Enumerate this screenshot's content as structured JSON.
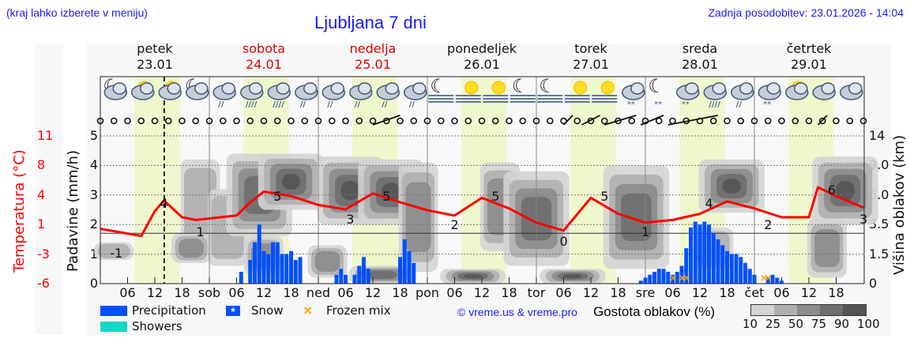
{
  "header": {
    "location_hint": "(kraj lahko izberete v meniju)",
    "title": "Ljubljana 7 dni",
    "last_update": "Zadnja posodobitev: 23.01.2026 - 14:04"
  },
  "days": [
    {
      "name": "petek",
      "date": "23.01",
      "weekend": false
    },
    {
      "name": "sobota",
      "date": "24.01",
      "weekend": true
    },
    {
      "name": "nedelja",
      "date": "25.01",
      "weekend": true
    },
    {
      "name": "ponedeljek",
      "date": "26.01",
      "weekend": false
    },
    {
      "name": "torek",
      "date": "27.01",
      "weekend": false
    },
    {
      "name": "sreda",
      "date": "28.01",
      "weekend": false
    },
    {
      "name": "četrtek",
      "date": "29.01",
      "weekend": false
    }
  ],
  "x_ticks": [
    "06",
    "12",
    "18",
    "sob",
    "06",
    "12",
    "18",
    "ned",
    "06",
    "12",
    "18",
    "pon",
    "06",
    "12",
    "18",
    "tor",
    "06",
    "12",
    "18",
    "sre",
    "06",
    "12",
    "18",
    "čet",
    "06",
    "12",
    "18"
  ],
  "axes": {
    "temp_label": "Temperatura (°C)",
    "temp_ticks": [
      "11",
      "8",
      "4",
      "1",
      "-3",
      "-6"
    ],
    "precip_label": "Padavine (mm/h)",
    "precip_ticks": [
      "5",
      "4",
      "3",
      "2",
      "1",
      "0"
    ],
    "cloud_height_label": "Višina oblakov (km)",
    "cloud_height_ticks": [
      "14",
      "9.0",
      "6.0",
      "3.5",
      "1.5",
      "0"
    ]
  },
  "legend": {
    "precipitation": "Precipitation",
    "snow": "Snow",
    "frozen_mix": "Frozen mix",
    "showers": "Showers",
    "copyright": "© vreme.us & vreme.pro",
    "cloud_density_label": "Gostota oblakov (%)",
    "cloud_density_ticks": [
      "10",
      "25",
      "50",
      "75",
      "90",
      "100"
    ]
  },
  "colors": {
    "temperature": "#ff0000",
    "precipitation": "#0050ff",
    "showers": "#10d8c8",
    "frozen_mix": "#ffa500",
    "daylight": "#eff7cc",
    "link": "#1a1aff",
    "weekend_day": "#e00000",
    "cloud_scale": [
      "#d4d4d4",
      "#b0b0b0",
      "#8c8c8c",
      "#6e6e6e",
      "#545454"
    ]
  },
  "chart_data": {
    "type": "line",
    "title": "Ljubljana 7 dni",
    "xlabel": "",
    "ylabel": "Padavine (mm/h)",
    "ylim": [
      0,
      5
    ],
    "y2label": "Temperatura (°C)",
    "y2lim": [
      -6,
      11
    ],
    "y3label": "Višina oblakov (km)",
    "y3_ticks": [
      0,
      1.5,
      3.5,
      6.0,
      9.0,
      14
    ],
    "x_range_hours": [
      0,
      168
    ],
    "current_time_hour": 14.07,
    "series": [
      {
        "name": "Temperatura",
        "unit": "°C",
        "x_hours": [
          0,
          9,
          12,
          14,
          18,
          21,
          30,
          33,
          36,
          42,
          48,
          54,
          60,
          66,
          72,
          78,
          84,
          90,
          96,
          102,
          108,
          114,
          120,
          126,
          132,
          138,
          144,
          150,
          156,
          158,
          162,
          168
        ],
        "values": [
          0.5,
          -0.3,
          2.5,
          3.7,
          1.8,
          1.5,
          2.0,
          3.5,
          4.7,
          4.2,
          3.2,
          2.7,
          4.5,
          3.5,
          2.6,
          2.0,
          4.0,
          2.8,
          1.2,
          0.3,
          4.0,
          2.2,
          1.2,
          1.5,
          2.2,
          3.6,
          2.8,
          1.8,
          1.8,
          5.2,
          4.2,
          2.9
        ]
      },
      {
        "name": "Temperature labels",
        "labels": [
          {
            "x_hour": 3,
            "value": "-1"
          },
          {
            "x_hour": 14,
            "value": "4"
          },
          {
            "x_hour": 22,
            "value": "1"
          },
          {
            "x_hour": 39,
            "value": "5"
          },
          {
            "x_hour": 55,
            "value": "3"
          },
          {
            "x_hour": 63,
            "value": "5"
          },
          {
            "x_hour": 78,
            "value": "2"
          },
          {
            "x_hour": 87,
            "value": "5"
          },
          {
            "x_hour": 102,
            "value": "0"
          },
          {
            "x_hour": 111,
            "value": "5"
          },
          {
            "x_hour": 120,
            "value": "1"
          },
          {
            "x_hour": 134,
            "value": "4"
          },
          {
            "x_hour": 147,
            "value": "2"
          },
          {
            "x_hour": 161,
            "value": "6"
          },
          {
            "x_hour": 168,
            "value": "3"
          }
        ]
      },
      {
        "name": "Precipitation",
        "unit": "mm/h",
        "x_hours": [
          31,
          33,
          34,
          35,
          36,
          37,
          38,
          39,
          40,
          41,
          42,
          43,
          44,
          52,
          53,
          54,
          56,
          57,
          58,
          59,
          66,
          67,
          68,
          69,
          119,
          120,
          121,
          122,
          123,
          124,
          125,
          126,
          127,
          128,
          129,
          130,
          131,
          132,
          133,
          134,
          135,
          136,
          137,
          138,
          139,
          140,
          141,
          142,
          143,
          144,
          147,
          148,
          149,
          150
        ],
        "values": [
          0.4,
          0.8,
          1.4,
          2.0,
          1.1,
          1.0,
          1.4,
          1.4,
          1.0,
          1.0,
          1.1,
          0.8,
          0.9,
          0.3,
          0.5,
          0.3,
          0.3,
          0.6,
          0.9,
          0.5,
          0.9,
          1.5,
          1.1,
          0.7,
          0.1,
          0.2,
          0.3,
          0.4,
          0.5,
          0.5,
          0.4,
          0.3,
          0.4,
          0.6,
          1.2,
          1.9,
          2.1,
          2.0,
          2.1,
          2.0,
          1.7,
          1.5,
          1.3,
          1.1,
          1.0,
          1.0,
          0.9,
          0.7,
          0.5,
          0.3,
          0.2,
          0.3,
          0.2,
          0.1
        ]
      },
      {
        "name": "Frozen mix",
        "x_hours": [
          126,
          128,
          129,
          146,
          147
        ],
        "values": [
          0.2,
          0.2,
          0.2,
          0.2,
          0.2
        ]
      }
    ],
    "daylight_hours": [
      [
        7.5,
        17.5
      ],
      [
        31.5,
        41.5
      ],
      [
        55.5,
        65.5
      ],
      [
        79.5,
        89.5
      ],
      [
        103.5,
        113.5
      ],
      [
        127.5,
        137.5
      ],
      [
        151.5,
        161.5
      ]
    ],
    "weather_icons": [
      "night-cloudy",
      "sun-cloud",
      "sun-cloud",
      "night-cloudy",
      "cloud-rain",
      "cloud-rain-heavy",
      "cloud-rain-heavy",
      "cloud-rain",
      "cloud-rain",
      "cloud-rain",
      "cloud-rain",
      "cloud-rain",
      "night-fog",
      "sun-fog",
      "sun-fog",
      "night-fog",
      "night-fog",
      "sun-fog",
      "sun-fog",
      "cloud-snow",
      "night-snow",
      "cloud-sleet",
      "cloud-rain-heavy",
      "cloud-rain",
      "cloud-snow",
      "sun-cloud",
      "cloud",
      "cloud"
    ],
    "legend_position": "bottom"
  }
}
